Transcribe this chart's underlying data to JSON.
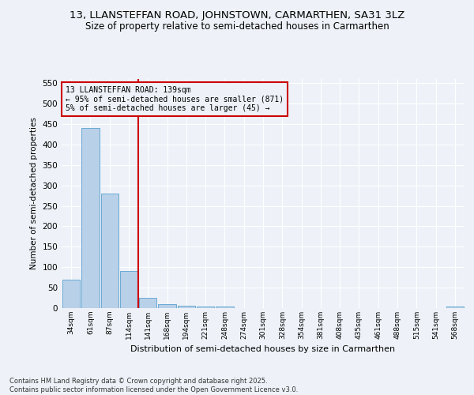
{
  "title": "13, LLANSTEFFAN ROAD, JOHNSTOWN, CARMARTHEN, SA31 3LZ",
  "subtitle": "Size of property relative to semi-detached houses in Carmarthen",
  "xlabel": "Distribution of semi-detached houses by size in Carmarthen",
  "ylabel": "Number of semi-detached properties",
  "bin_labels": [
    "34sqm",
    "61sqm",
    "87sqm",
    "114sqm",
    "141sqm",
    "168sqm",
    "194sqm",
    "221sqm",
    "248sqm",
    "274sqm",
    "301sqm",
    "328sqm",
    "354sqm",
    "381sqm",
    "408sqm",
    "435sqm",
    "461sqm",
    "488sqm",
    "515sqm",
    "541sqm",
    "568sqm"
  ],
  "bar_values": [
    70,
    440,
    280,
    90,
    25,
    10,
    6,
    4,
    4,
    0,
    0,
    0,
    0,
    0,
    0,
    0,
    0,
    0,
    0,
    0,
    3
  ],
  "bar_color": "#b8d0e8",
  "bar_edgecolor": "#6aaad4",
  "vline_color": "#cc0000",
  "annotation_title": "13 LLANSTEFFAN ROAD: 139sqm",
  "annotation_line1": "← 95% of semi-detached houses are smaller (871)",
  "annotation_line2": "5% of semi-detached houses are larger (45) →",
  "annotation_box_color": "#cc0000",
  "ylim": [
    0,
    560
  ],
  "yticks": [
    0,
    50,
    100,
    150,
    200,
    250,
    300,
    350,
    400,
    450,
    500,
    550
  ],
  "footnote1": "Contains HM Land Registry data © Crown copyright and database right 2025.",
  "footnote2": "Contains public sector information licensed under the Open Government Licence v3.0.",
  "bg_color": "#eef2f8",
  "grid_color": "#ffffff",
  "title_fontsize": 9.5,
  "subtitle_fontsize": 8.5
}
